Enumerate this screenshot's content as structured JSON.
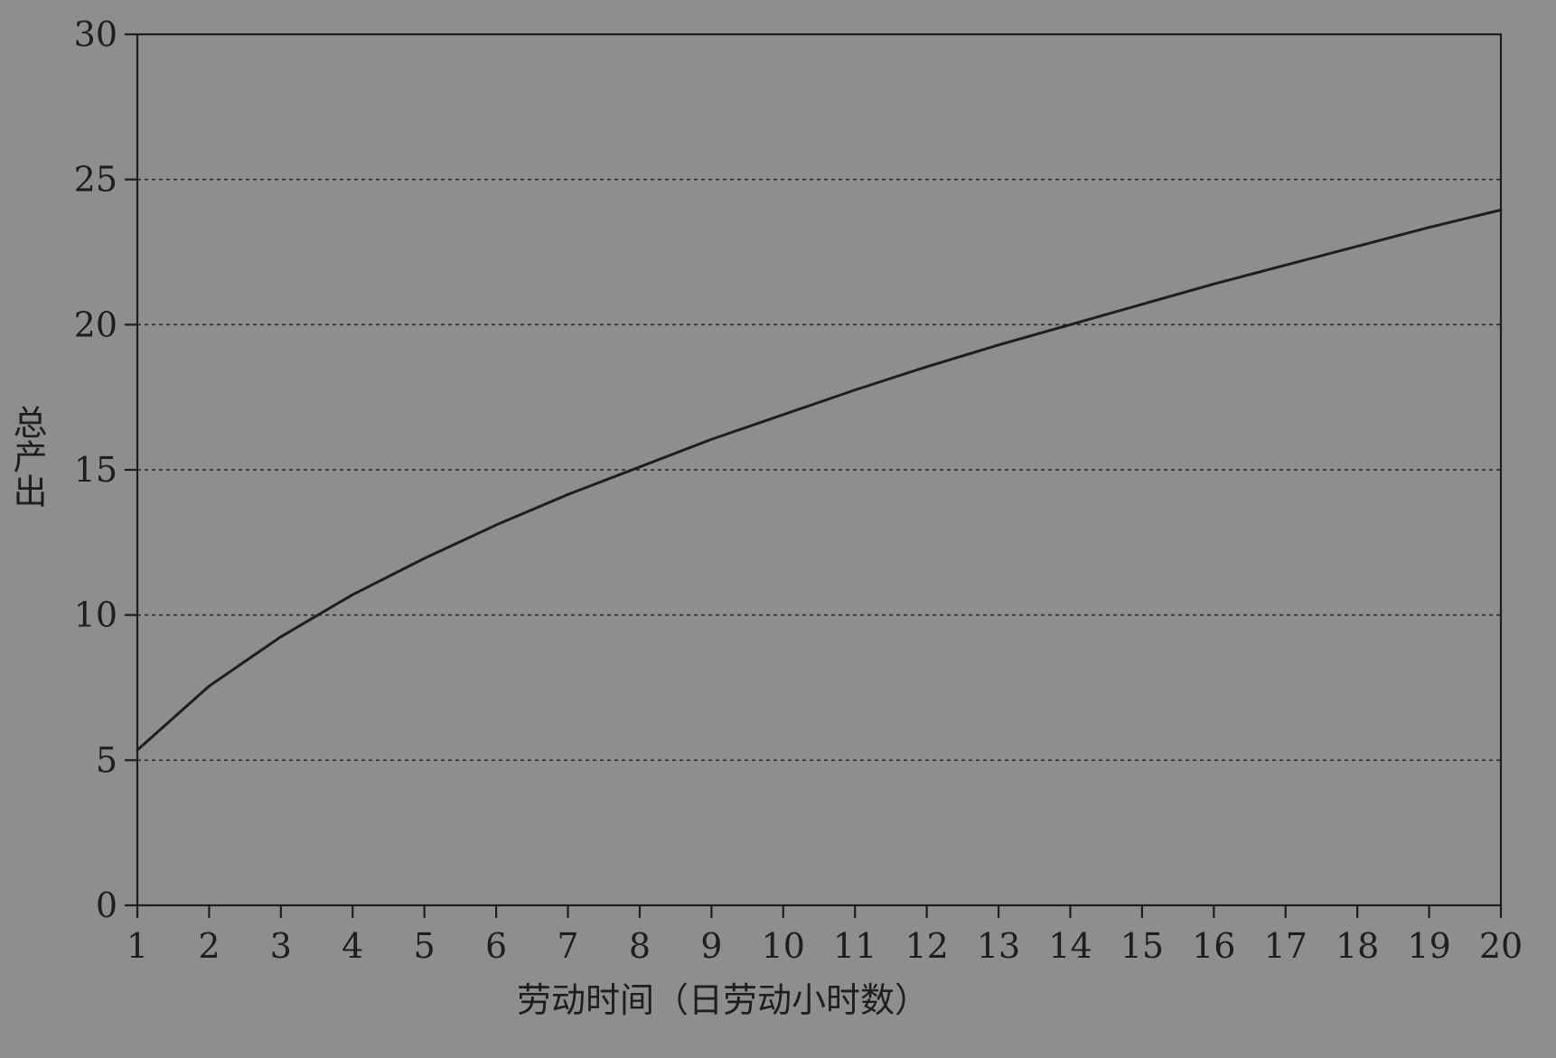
{
  "chart_data": {
    "type": "line",
    "xlabel": "劳动时间（日劳动小时数）",
    "ylabel": "总产出",
    "xlim": [
      1,
      20
    ],
    "ylim": [
      0,
      30
    ],
    "x_ticks": [
      "1",
      "2",
      "3",
      "4",
      "5",
      "6",
      "7",
      "8",
      "9",
      "10",
      "11",
      "12",
      "13",
      "14",
      "15",
      "16",
      "17",
      "18",
      "19",
      "20"
    ],
    "y_ticks": [
      "0",
      "5",
      "10",
      "15",
      "20",
      "25",
      "30"
    ],
    "grid": "horizontal dotted lines at 5, 10, 15, 20, 25",
    "legend": "none",
    "series": [
      {
        "x": [
          1,
          2,
          3,
          4,
          5,
          6,
          7,
          8,
          9,
          10,
          11,
          12,
          13,
          14,
          15,
          16,
          17,
          18,
          19,
          20
        ],
        "y": [
          5.35,
          7.55,
          9.25,
          10.7,
          11.95,
          13.1,
          14.15,
          15.1,
          16.05,
          16.9,
          17.75,
          18.55,
          19.3,
          20.0,
          20.7,
          21.4,
          22.05,
          22.7,
          23.35,
          23.95
        ]
      }
    ]
  },
  "colors": {
    "background": "#8e8e90",
    "ink": "#1e1e20",
    "grid": "#2a2a2c"
  }
}
